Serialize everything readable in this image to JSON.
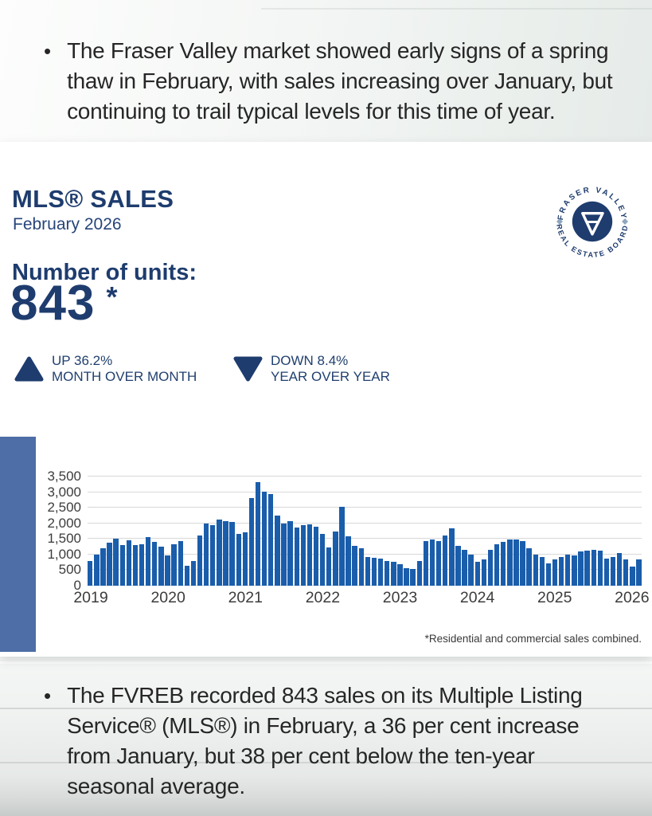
{
  "top_section": {
    "bullet": "•",
    "bullet_text": "The Fraser Valley market showed early signs of a spring thaw in February, with sales increasing over January, but continuing to trail typical levels for this time of year."
  },
  "report_card": {
    "title": "MLS® SALES",
    "subtitle": "February 2026",
    "metric_label": "Number of units:",
    "metric_value": "843",
    "metric_asterisk": "*",
    "indicators": [
      {
        "direction": "up",
        "change_label": "UP  36.2%",
        "period_label": "MONTH OVER MONTH"
      },
      {
        "direction": "down",
        "change_label": "DOWN 8.4%",
        "period_label": "YEAR OVER YEAR"
      }
    ],
    "logo": {
      "top_text": "FRASER VALLEY",
      "bottom_text": "REAL ESTATE BOARD",
      "monogram": "FV"
    },
    "footnote": "*Residential and commercial sales combined."
  },
  "chart_data": {
    "type": "bar",
    "title": "",
    "xlabel": "",
    "ylabel": "",
    "x_start": "Jan 2019",
    "x_end": "Feb 2026",
    "x_tick_labels": [
      "2019",
      "2020",
      "2021",
      "2022",
      "2023",
      "2024",
      "2025",
      "2026"
    ],
    "y_tick_labels": [
      "0",
      "500",
      "1,000",
      "1,500",
      "2,000",
      "2,500",
      "3,000",
      "3,500"
    ],
    "y_tick_values": [
      0,
      500,
      1000,
      1500,
      2000,
      2500,
      3000,
      3500
    ],
    "ylim": [
      0,
      3500
    ],
    "grid": true,
    "legend": "none",
    "months_per_tick": 12,
    "series": [
      {
        "name": "MLS sales per month",
        "values": [
          780,
          990,
          1210,
          1370,
          1510,
          1310,
          1450,
          1300,
          1340,
          1570,
          1400,
          1250,
          980,
          1340,
          1440,
          650,
          805,
          1610,
          2000,
          1950,
          2130,
          2080,
          2040,
          1660,
          1720,
          2810,
          3330,
          3010,
          2940,
          2240,
          2000,
          2080,
          1870,
          1940,
          1960,
          1890,
          1660,
          1230,
          1740,
          2530,
          1590,
          1290,
          1190,
          910,
          905,
          865,
          805,
          760,
          700,
          550,
          530,
          800,
          1440,
          1470,
          1420,
          1610,
          1840,
          1270,
          1140,
          990,
          760,
          845,
          1140,
          1330,
          1400,
          1470,
          1490,
          1420,
          1200,
          1000,
          915,
          720,
          850,
          920,
          995,
          960,
          1105,
          1130,
          1145,
          1130,
          875,
          910,
          1045,
          850,
          619,
          843
        ]
      }
    ]
  },
  "bottom_section": {
    "bullet": "•",
    "bullet_text": "The FVREB recorded 843 sales on its Multiple Listing Service® (MLS®) in February, a 36 per cent increase from January, but 38 per cent below the ten-year seasonal average."
  },
  "colors": {
    "navy": "#1e3c6e",
    "bar_blue": "#1a5dab",
    "band_blue": "#4d6ea6",
    "text_dark": "#262626",
    "gridline": "#d8d8d8"
  }
}
